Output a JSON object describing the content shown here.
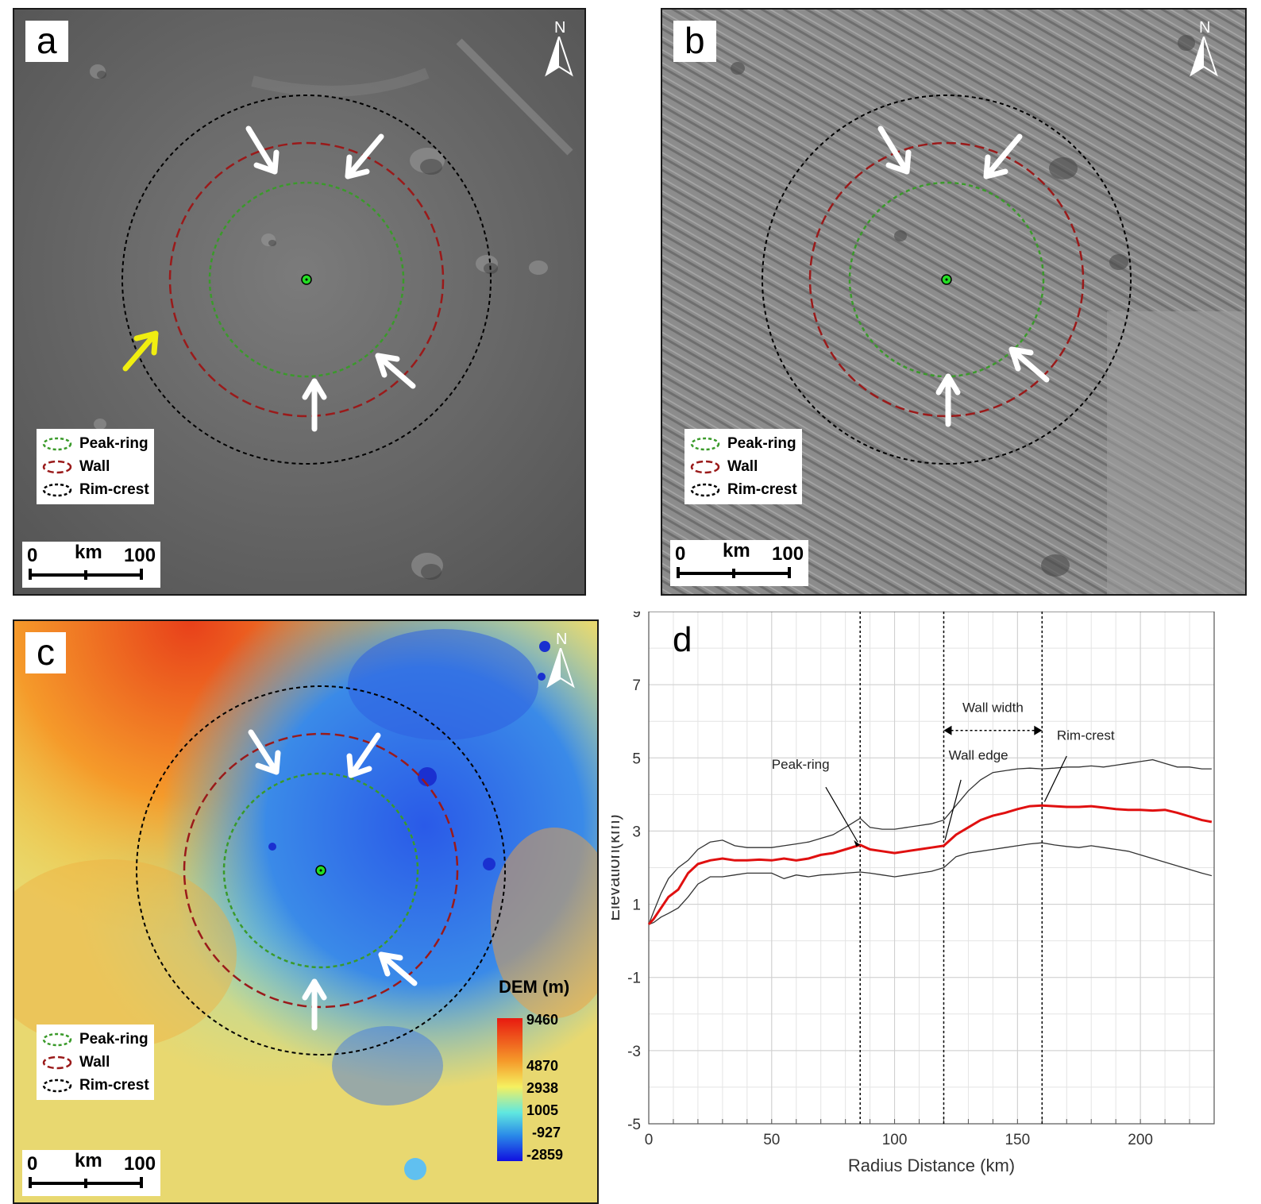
{
  "panels": {
    "a": {
      "label": "a",
      "north": "N"
    },
    "b": {
      "label": "b",
      "north": "N"
    },
    "c": {
      "label": "c",
      "north": "N"
    },
    "d": {
      "label": "d"
    }
  },
  "legend": {
    "peak_ring": "Peak-ring",
    "wall": "Wall",
    "rim_crest": "Rim-crest"
  },
  "scale_bar": {
    "start": "0",
    "unit": "km",
    "end": "100"
  },
  "dem": {
    "title": "DEM (m)",
    "ticks": [
      "9460",
      "4870",
      "2938",
      "1005",
      "-927",
      "-2859"
    ]
  },
  "colors": {
    "peak_ring": "#3a9a2a",
    "wall": "#9a1a1a",
    "rim_crest": "#000000",
    "profile_mean": "#e01010",
    "profile_envelope": "#333333",
    "center": "#22dd22",
    "yellow_arrow": "#f0ee10"
  },
  "icons": [
    "north-arrow-icon",
    "white-arrow-icon",
    "yellow-arrow-icon"
  ],
  "chart_data": {
    "type": "line",
    "xlabel": "Radius Distance (km)",
    "ylabel": "Elevation(km)",
    "xlim": [
      0,
      230
    ],
    "ylim": [
      -5,
      9
    ],
    "xticks": [
      0,
      50,
      100,
      150,
      200
    ],
    "yticks": [
      -5,
      -3,
      -1,
      1,
      3,
      5,
      7,
      9
    ],
    "grid": true,
    "vlines": [
      86,
      120,
      160
    ],
    "annotations": {
      "peak_ring": "Peak-ring",
      "wall_edge": "Wall edge",
      "rim_crest": "Rim-crest",
      "wall_width": "Wall width"
    },
    "series": [
      {
        "x": [
          0,
          2,
          5,
          8,
          12,
          16,
          20,
          25,
          30,
          35,
          40,
          45,
          50,
          55,
          60,
          65,
          70,
          75,
          80,
          86,
          90,
          95,
          100,
          105,
          110,
          115,
          120,
          125,
          130,
          135,
          140,
          145,
          150,
          155,
          160,
          165,
          170,
          175,
          180,
          185,
          190,
          195,
          200,
          205,
          210,
          215,
          220,
          225,
          229
        ],
        "values": [
          0.45,
          0.6,
          0.9,
          1.2,
          1.4,
          1.85,
          2.1,
          2.2,
          2.25,
          2.2,
          2.2,
          2.22,
          2.2,
          2.25,
          2.2,
          2.25,
          2.35,
          2.4,
          2.5,
          2.62,
          2.5,
          2.45,
          2.4,
          2.45,
          2.5,
          2.55,
          2.6,
          2.9,
          3.1,
          3.3,
          3.42,
          3.5,
          3.6,
          3.68,
          3.7,
          3.68,
          3.66,
          3.66,
          3.68,
          3.64,
          3.6,
          3.58,
          3.58,
          3.56,
          3.58,
          3.5,
          3.4,
          3.3,
          3.25
        ]
      },
      {
        "x": [
          0,
          2,
          5,
          8,
          12,
          16,
          20,
          25,
          30,
          35,
          40,
          45,
          50,
          55,
          60,
          65,
          70,
          75,
          80,
          86,
          90,
          95,
          100,
          105,
          110,
          115,
          120,
          125,
          130,
          135,
          140,
          145,
          150,
          155,
          160,
          165,
          170,
          175,
          180,
          185,
          190,
          195,
          200,
          205,
          210,
          215,
          220,
          225,
          229
        ],
        "values": [
          0.45,
          0.8,
          1.3,
          1.7,
          2.0,
          2.2,
          2.5,
          2.7,
          2.75,
          2.6,
          2.55,
          2.55,
          2.55,
          2.6,
          2.65,
          2.7,
          2.8,
          2.9,
          3.1,
          3.35,
          3.1,
          3.05,
          3.05,
          3.1,
          3.15,
          3.2,
          3.3,
          3.7,
          4.1,
          4.4,
          4.6,
          4.65,
          4.7,
          4.72,
          4.7,
          4.72,
          4.75,
          4.75,
          4.78,
          4.75,
          4.8,
          4.85,
          4.9,
          4.95,
          4.85,
          4.75,
          4.75,
          4.7,
          4.7
        ]
      },
      {
        "x": [
          0,
          2,
          5,
          8,
          12,
          16,
          20,
          25,
          30,
          35,
          40,
          45,
          50,
          55,
          60,
          65,
          70,
          75,
          80,
          86,
          90,
          95,
          100,
          105,
          110,
          115,
          120,
          125,
          130,
          135,
          140,
          145,
          150,
          155,
          160,
          165,
          170,
          175,
          180,
          185,
          190,
          195,
          200,
          205,
          210,
          215,
          220,
          225,
          229
        ],
        "values": [
          0.45,
          0.5,
          0.65,
          0.75,
          0.9,
          1.2,
          1.55,
          1.75,
          1.75,
          1.8,
          1.85,
          1.85,
          1.85,
          1.7,
          1.8,
          1.75,
          1.8,
          1.82,
          1.85,
          1.88,
          1.85,
          1.8,
          1.75,
          1.8,
          1.85,
          1.9,
          2.0,
          2.3,
          2.4,
          2.45,
          2.5,
          2.55,
          2.6,
          2.65,
          2.68,
          2.62,
          2.58,
          2.55,
          2.6,
          2.55,
          2.5,
          2.45,
          2.35,
          2.25,
          2.15,
          2.05,
          1.95,
          1.85,
          1.78
        ]
      }
    ]
  }
}
